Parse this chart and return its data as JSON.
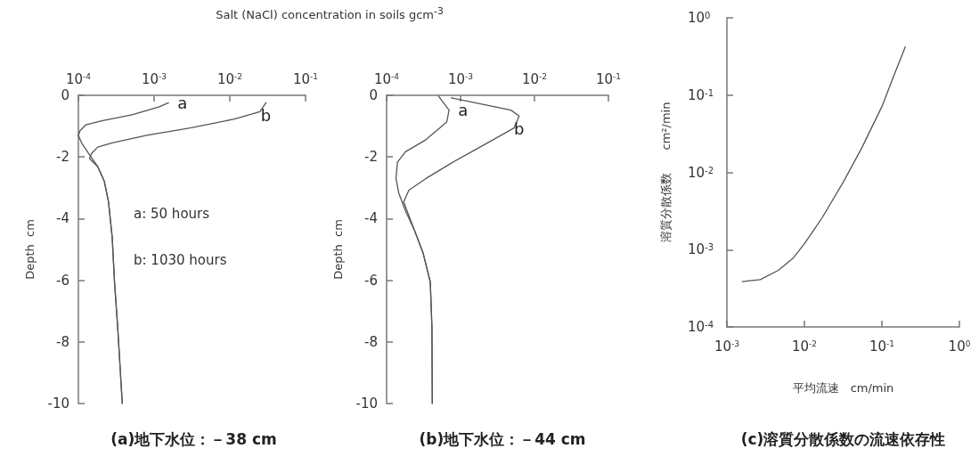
{
  "chart_data": [
    {
      "type": "line",
      "title": "Salt (NaCl) concentration in soils  gcm$^{-3}$",
      "subtitle": "(a)地下水位：－38 cm",
      "ylabel": "Depth  cm",
      "log": "x",
      "xlim": [
        0.0001,
        0.1
      ],
      "xticks": [
        {
          "value": 0.0001,
          "label": "10$^{-4}$"
        },
        {
          "value": 0.001,
          "label": "10$^{-3}$"
        },
        {
          "value": 0.01,
          "label": "10$^{-2}$"
        },
        {
          "value": 0.1,
          "label": "10$^{-1}$"
        }
      ],
      "ylim": [
        -10,
        0
      ],
      "yticks": [
        0,
        -2,
        -4,
        -6,
        -8,
        -10
      ],
      "grid": false,
      "legend": false,
      "marker": "none",
      "line_style": "solid",
      "annotations": [
        "a: 50 hours",
        "b: 1030 hours"
      ],
      "series": [
        {
          "name": "a",
          "color": "#555555",
          "x": [
            0.00155,
            0.00115,
            0.00051,
            0.00021,
            0.000125,
            0.000105,
            0.0001,
            0.00011,
            0.000136,
            0.00018,
            0.00022,
            0.00025,
            0.00028,
            0.0003,
            0.00033,
            0.00038
          ],
          "values": [
            -0.24,
            -0.38,
            -0.63,
            -0.82,
            -0.96,
            -1.15,
            -1.3,
            -1.54,
            -1.88,
            -2.31,
            -2.79,
            -3.46,
            -4.62,
            -6.06,
            -7.5,
            -10
          ]
        },
        {
          "name": "b",
          "color": "#555555",
          "x": [
            0.03,
            0.025,
            0.0115,
            0.003,
            0.0008,
            0.00028,
            0.00018,
            0.00015,
            0.00014,
            0.00018,
            0.00022,
            0.00025,
            0.00028,
            0.0003,
            0.00033,
            0.00038
          ],
          "values": [
            -0.24,
            -0.53,
            -0.77,
            -1.06,
            -1.3,
            -1.54,
            -1.68,
            -1.88,
            -2.05,
            -2.31,
            -2.79,
            -3.46,
            -4.62,
            -6.06,
            -7.5,
            -10
          ]
        }
      ]
    },
    {
      "type": "line",
      "subtitle": "(b)地下水位：－44 cm",
      "ylabel": "Depth  cm",
      "log": "x",
      "xlim": [
        0.0001,
        0.1
      ],
      "xticks": [
        {
          "value": 0.0001,
          "label": "10$^{-4}$"
        },
        {
          "value": 0.001,
          "label": "10$^{-3}$"
        },
        {
          "value": 0.01,
          "label": "10$^{-2}$"
        },
        {
          "value": 0.1,
          "label": "10$^{-1}$"
        }
      ],
      "ylim": [
        -10,
        0
      ],
      "yticks": [
        0,
        -2,
        -4,
        -6,
        -8,
        -10
      ],
      "grid": false,
      "legend": false,
      "marker": "none",
      "line_style": "solid",
      "series": [
        {
          "name": "a",
          "color": "#555555",
          "x": [
            0.0005,
            0.0007,
            0.00065,
            0.00034,
            0.00018,
            0.00014,
            0.000134,
            0.000146,
            0.00018,
            0.00024,
            0.00031,
            0.00039,
            0.00041,
            0.000415
          ],
          "values": [
            -0.02,
            -0.48,
            -0.87,
            -1.44,
            -1.83,
            -2.17,
            -2.7,
            -3.17,
            -3.75,
            -4.4,
            -5.1,
            -6.06,
            -7.5,
            -10
          ]
        },
        {
          "name": "b",
          "color": "#555555",
          "x": [
            0.00075,
            0.002,
            0.0048,
            0.0062,
            0.0053,
            0.002,
            0.00075,
            0.00034,
            0.0002,
            0.00017,
            0.00024,
            0.00031,
            0.00039,
            0.00041,
            0.000415
          ],
          "values": [
            -0.08,
            -0.29,
            -0.48,
            -0.67,
            -1.06,
            -1.63,
            -2.2,
            -2.7,
            -3.08,
            -3.46,
            -4.4,
            -5.1,
            -6.06,
            -7.5,
            -10
          ]
        }
      ]
    },
    {
      "type": "line",
      "subtitle": "(c)溶質分散係数の流速依存性",
      "xlabel": "平均流速　cm/min",
      "ylabel": "溶質分散係数　　cm²/min",
      "log": "xy",
      "xlim": [
        0.001,
        1
      ],
      "xticks": [
        {
          "value": 0.001,
          "label": "10$^{-3}$"
        },
        {
          "value": 0.01,
          "label": "10$^{-2}$"
        },
        {
          "value": 0.1,
          "label": "10$^{-1}$"
        },
        {
          "value": 1,
          "label": "10$^{0}$"
        }
      ],
      "ylim": [
        0.0001,
        1
      ],
      "yticks": [
        {
          "value": 0.0001,
          "label": "10$^{-4}$"
        },
        {
          "value": 0.001,
          "label": "10$^{-3}$"
        },
        {
          "value": 0.01,
          "label": "10$^{-2}$"
        },
        {
          "value": 0.1,
          "label": "10$^{-1}$"
        },
        {
          "value": 1,
          "label": "10$^{0}$"
        }
      ],
      "grid": false,
      "legend": false,
      "marker": "none",
      "line_style": "solid",
      "series": [
        {
          "color": "#555555",
          "x": [
            0.00158,
            0.0027,
            0.0046,
            0.0071,
            0.01,
            0.017,
            0.032,
            0.054,
            0.1,
            0.14,
            0.2
          ],
          "values": [
            0.000385,
            0.00041,
            0.00054,
            0.00077,
            0.00119,
            0.0026,
            0.0076,
            0.02,
            0.071,
            0.17,
            0.42
          ]
        }
      ]
    }
  ]
}
